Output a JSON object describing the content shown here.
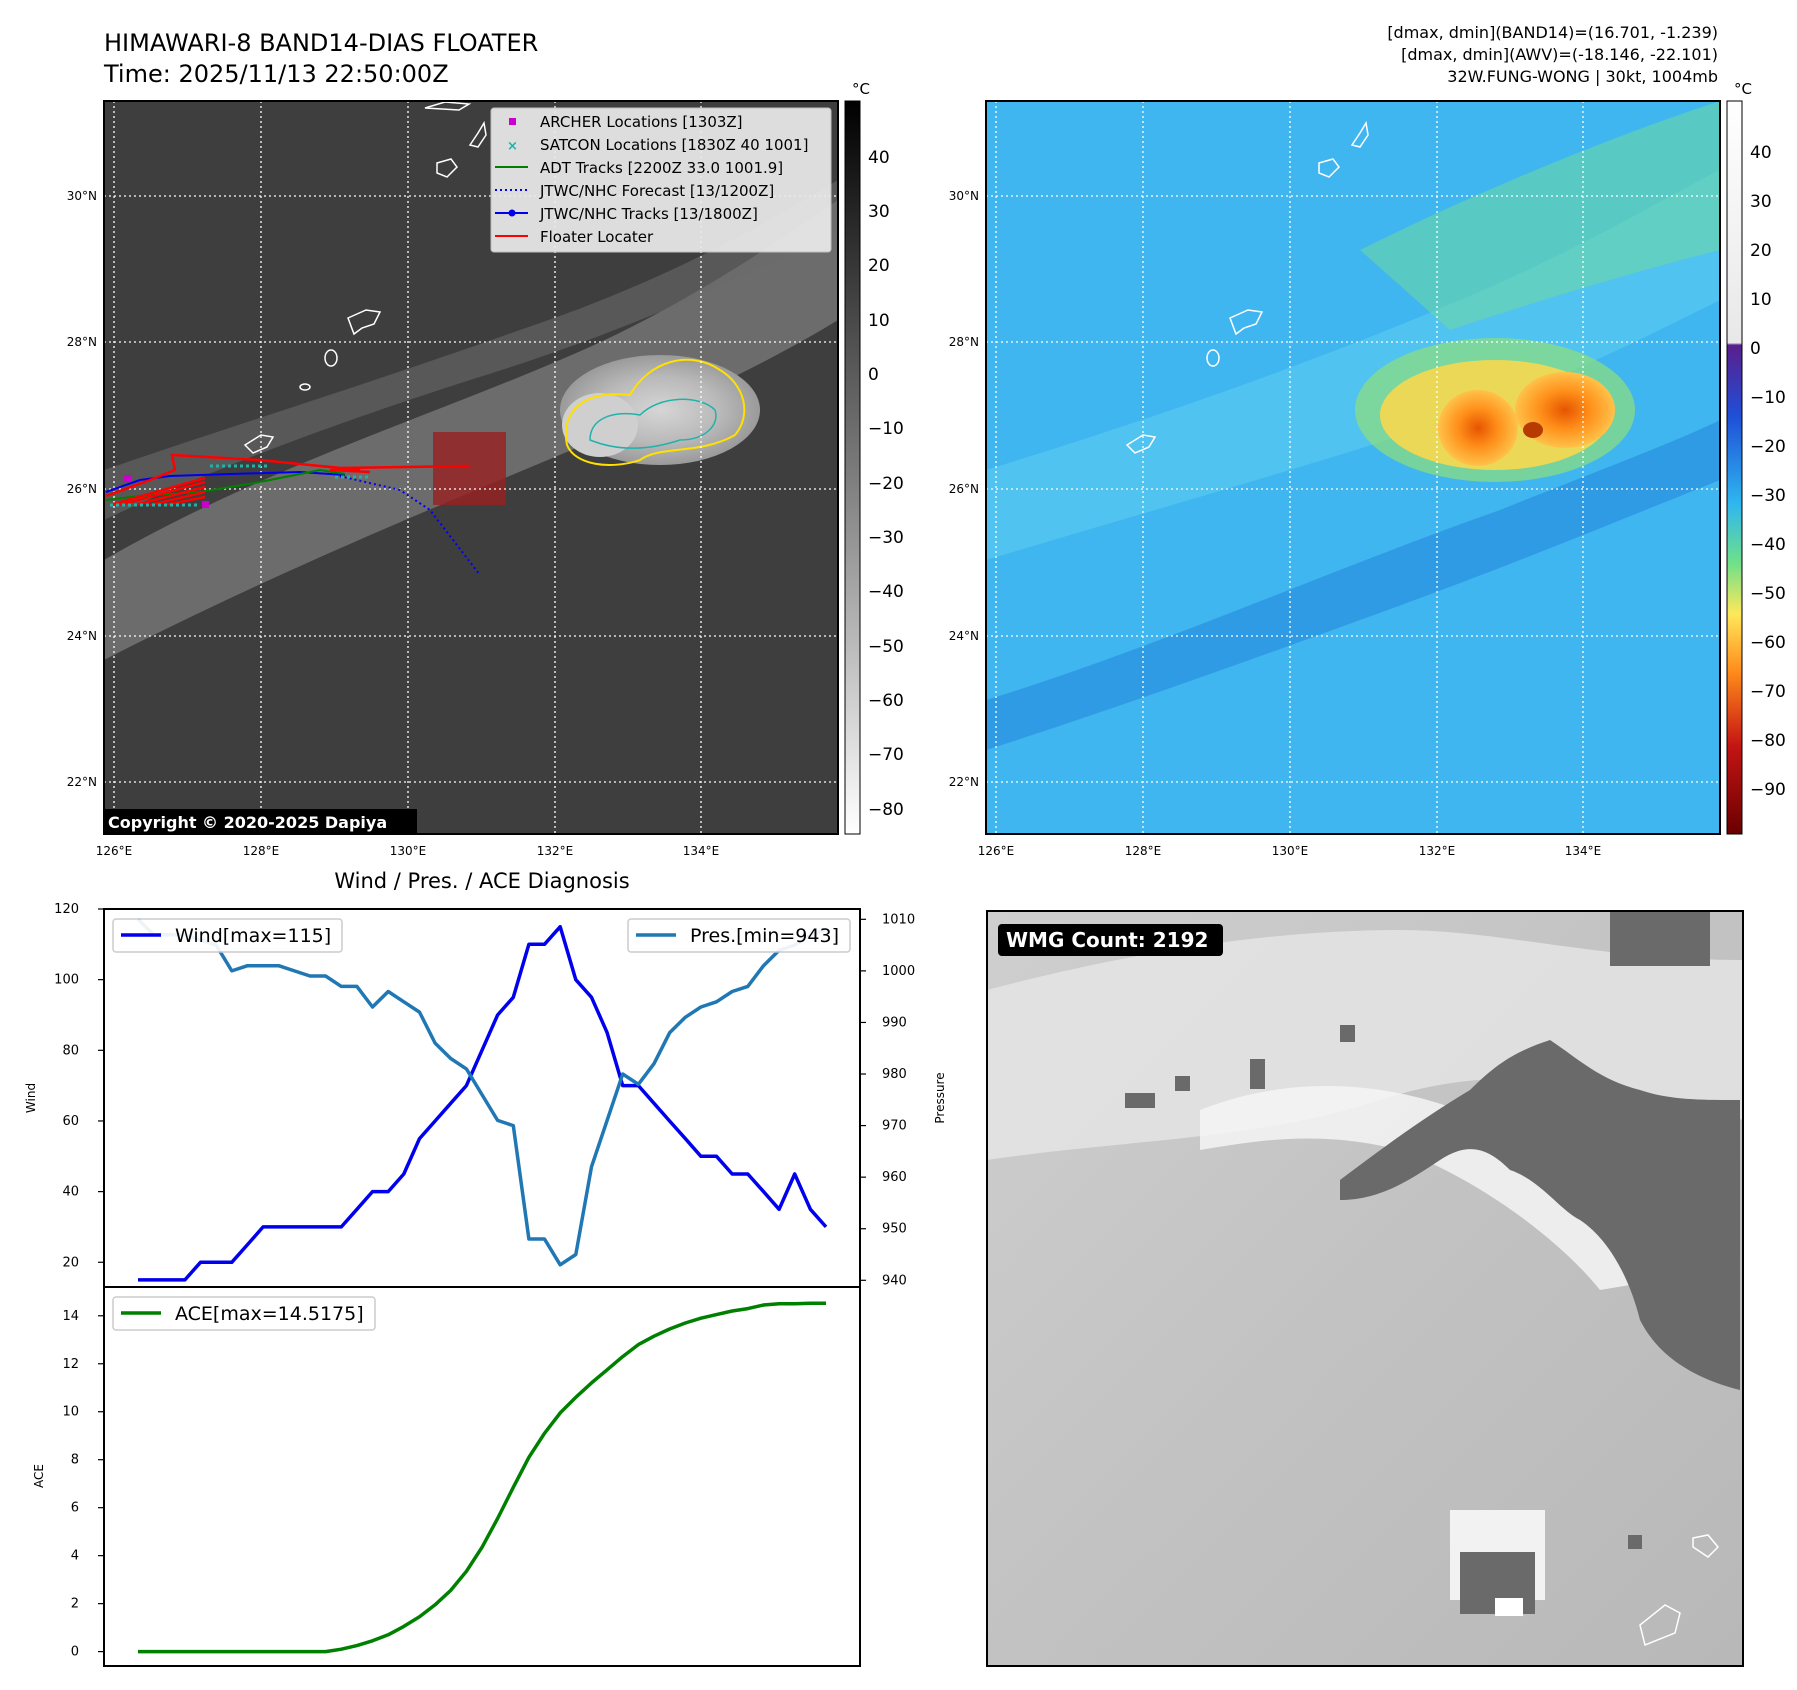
{
  "header": {
    "title": "HIMAWARI-8 BAND14-DIAS FLOATER",
    "time": "Time: 2025/11/13 22:50:00Z",
    "dmax_band14": "[dmax, dmin](BAND14)=(16.701, -1.239)",
    "dmax_awv": "[dmax, dmin](AWV)=(-18.146, -22.101)",
    "storm": "32W.FUNG-WONG | 30kt, 1004mb"
  },
  "colors": {
    "ir_background": "#3e3e3e",
    "awv_background": "#3fb6ef",
    "wind": "#0000ee",
    "pressure": "#1f77b4",
    "ace": "#008000",
    "archer": "#cc00cc",
    "satcon": "#20b2aa",
    "adt": "#008000",
    "jtwc": "#0000ee",
    "floater": "#ff0000",
    "wmg_dark": "#6a6a6a"
  },
  "left_map": {
    "copyright": "Copyright © 2020-2025 Dapiya",
    "colorbar_unit": "°C",
    "colorbar_ticks": [
      "40",
      "30",
      "20",
      "10",
      "0",
      "−10",
      "−20",
      "−30",
      "−40",
      "−50",
      "−60",
      "−70",
      "−80"
    ],
    "legend": [
      {
        "label": "ARCHER Locations [1303Z]",
        "marker": "square"
      },
      {
        "label": "SATCON Locations [1830Z 40 1001]",
        "marker": "x"
      },
      {
        "label": "ADT Tracks [2200Z 33.0 1001.9]",
        "marker": "line"
      },
      {
        "label": "JTWC/NHC Forecast [13/1200Z]",
        "marker": "dotted"
      },
      {
        "label": "JTWC/NHC Tracks [13/1800Z]",
        "marker": "line-dot"
      },
      {
        "label": "Floater Locater",
        "marker": "line"
      }
    ]
  },
  "right_map": {
    "colorbar_unit": "°C",
    "colorbar_ticks": [
      "40",
      "30",
      "20",
      "10",
      "0",
      "−10",
      "−20",
      "−30",
      "−40",
      "−50",
      "−60",
      "−70",
      "−80",
      "−90"
    ]
  },
  "map_axes": {
    "lat_labels": [
      "30°N",
      "28°N",
      "26°N",
      "24°N",
      "22°N"
    ],
    "lon_labels": [
      "126°E",
      "128°E",
      "130°E",
      "132°E",
      "134°E"
    ]
  },
  "diagnosis": {
    "title": "Wind / Pres. / ACE Diagnosis",
    "wind_axis_label": "Wind",
    "pressure_axis_label": "Pressure",
    "ace_axis_label": "ACE",
    "wind_legend": "Wind[max=115]",
    "pressure_legend": "Pres.[min=943]",
    "ace_legend": "ACE[max=14.5175]",
    "wind_ticks": [
      "120",
      "100",
      "80",
      "60",
      "40",
      "20"
    ],
    "pressure_ticks": [
      "1010",
      "1000",
      "990",
      "980",
      "970",
      "960",
      "950",
      "940"
    ],
    "ace_ticks": [
      "14",
      "12",
      "10",
      "8",
      "6",
      "4",
      "2",
      "0"
    ]
  },
  "wmg": {
    "badge": "WMG Count: 2192"
  },
  "chart_data": [
    {
      "type": "line",
      "title": "Wind / Pres. / ACE Diagnosis",
      "ylabel": "Wind",
      "y2label": "Pressure",
      "x": [
        0,
        1,
        2,
        3,
        4,
        5,
        6,
        7,
        8,
        9,
        10,
        11,
        12,
        13,
        14,
        15,
        16,
        17,
        18,
        19,
        20,
        21,
        22,
        23,
        24,
        25,
        26,
        27,
        28,
        29,
        30,
        31,
        32,
        33,
        34,
        35,
        36,
        37,
        38,
        39,
        40,
        41,
        42,
        43,
        44
      ],
      "ylim": [
        13,
        120
      ],
      "y2lim": [
        938.7,
        1012
      ],
      "series": [
        {
          "name": "Wind[max=115]",
          "axis": "left",
          "values": [
            15,
            15,
            15,
            15,
            20,
            20,
            20,
            25,
            30,
            30,
            30,
            30,
            30,
            30,
            35,
            40,
            40,
            45,
            55,
            60,
            65,
            70,
            80,
            90,
            95,
            110,
            110,
            115,
            100,
            95,
            85,
            70,
            70,
            65,
            60,
            55,
            50,
            50,
            45,
            45,
            40,
            35,
            45,
            35,
            30
          ]
        },
        {
          "name": "Pres.[min=943]",
          "axis": "right",
          "values": [
            1010,
            1007,
            1007,
            1007,
            1006,
            1005,
            1000,
            1001,
            1001,
            1001,
            1000,
            999,
            999,
            997,
            997,
            993,
            996,
            994,
            992,
            986,
            983,
            981,
            976,
            971,
            970,
            948,
            948,
            943,
            945,
            962,
            971,
            980,
            978,
            982,
            988,
            991,
            993,
            994,
            996,
            997,
            1001,
            1004,
            1005,
            1007,
            1008
          ]
        }
      ]
    },
    {
      "type": "area",
      "ylabel": "ACE",
      "x": [
        0,
        1,
        2,
        3,
        4,
        5,
        6,
        7,
        8,
        9,
        10,
        11,
        12,
        13,
        14,
        15,
        16,
        17,
        18,
        19,
        20,
        21,
        22,
        23,
        24,
        25,
        26,
        27,
        28,
        29,
        30,
        31,
        32,
        33,
        34,
        35,
        36,
        37,
        38,
        39,
        40,
        41,
        42,
        43,
        44
      ],
      "ylim": [
        -0.6,
        15.2
      ],
      "series": [
        {
          "name": "ACE[max=14.5175]",
          "values": [
            0,
            0,
            0,
            0,
            0,
            0,
            0,
            0,
            0,
            0,
            0,
            0,
            0,
            0.1,
            0.25,
            0.45,
            0.7,
            1.05,
            1.45,
            1.95,
            2.55,
            3.35,
            4.35,
            5.55,
            6.85,
            8.1,
            9.1,
            9.95,
            10.6,
            11.2,
            11.75,
            12.3,
            12.8,
            13.15,
            13.45,
            13.7,
            13.9,
            14.05,
            14.2,
            14.3,
            14.45,
            14.5,
            14.5,
            14.52,
            14.52
          ]
        }
      ]
    }
  ]
}
